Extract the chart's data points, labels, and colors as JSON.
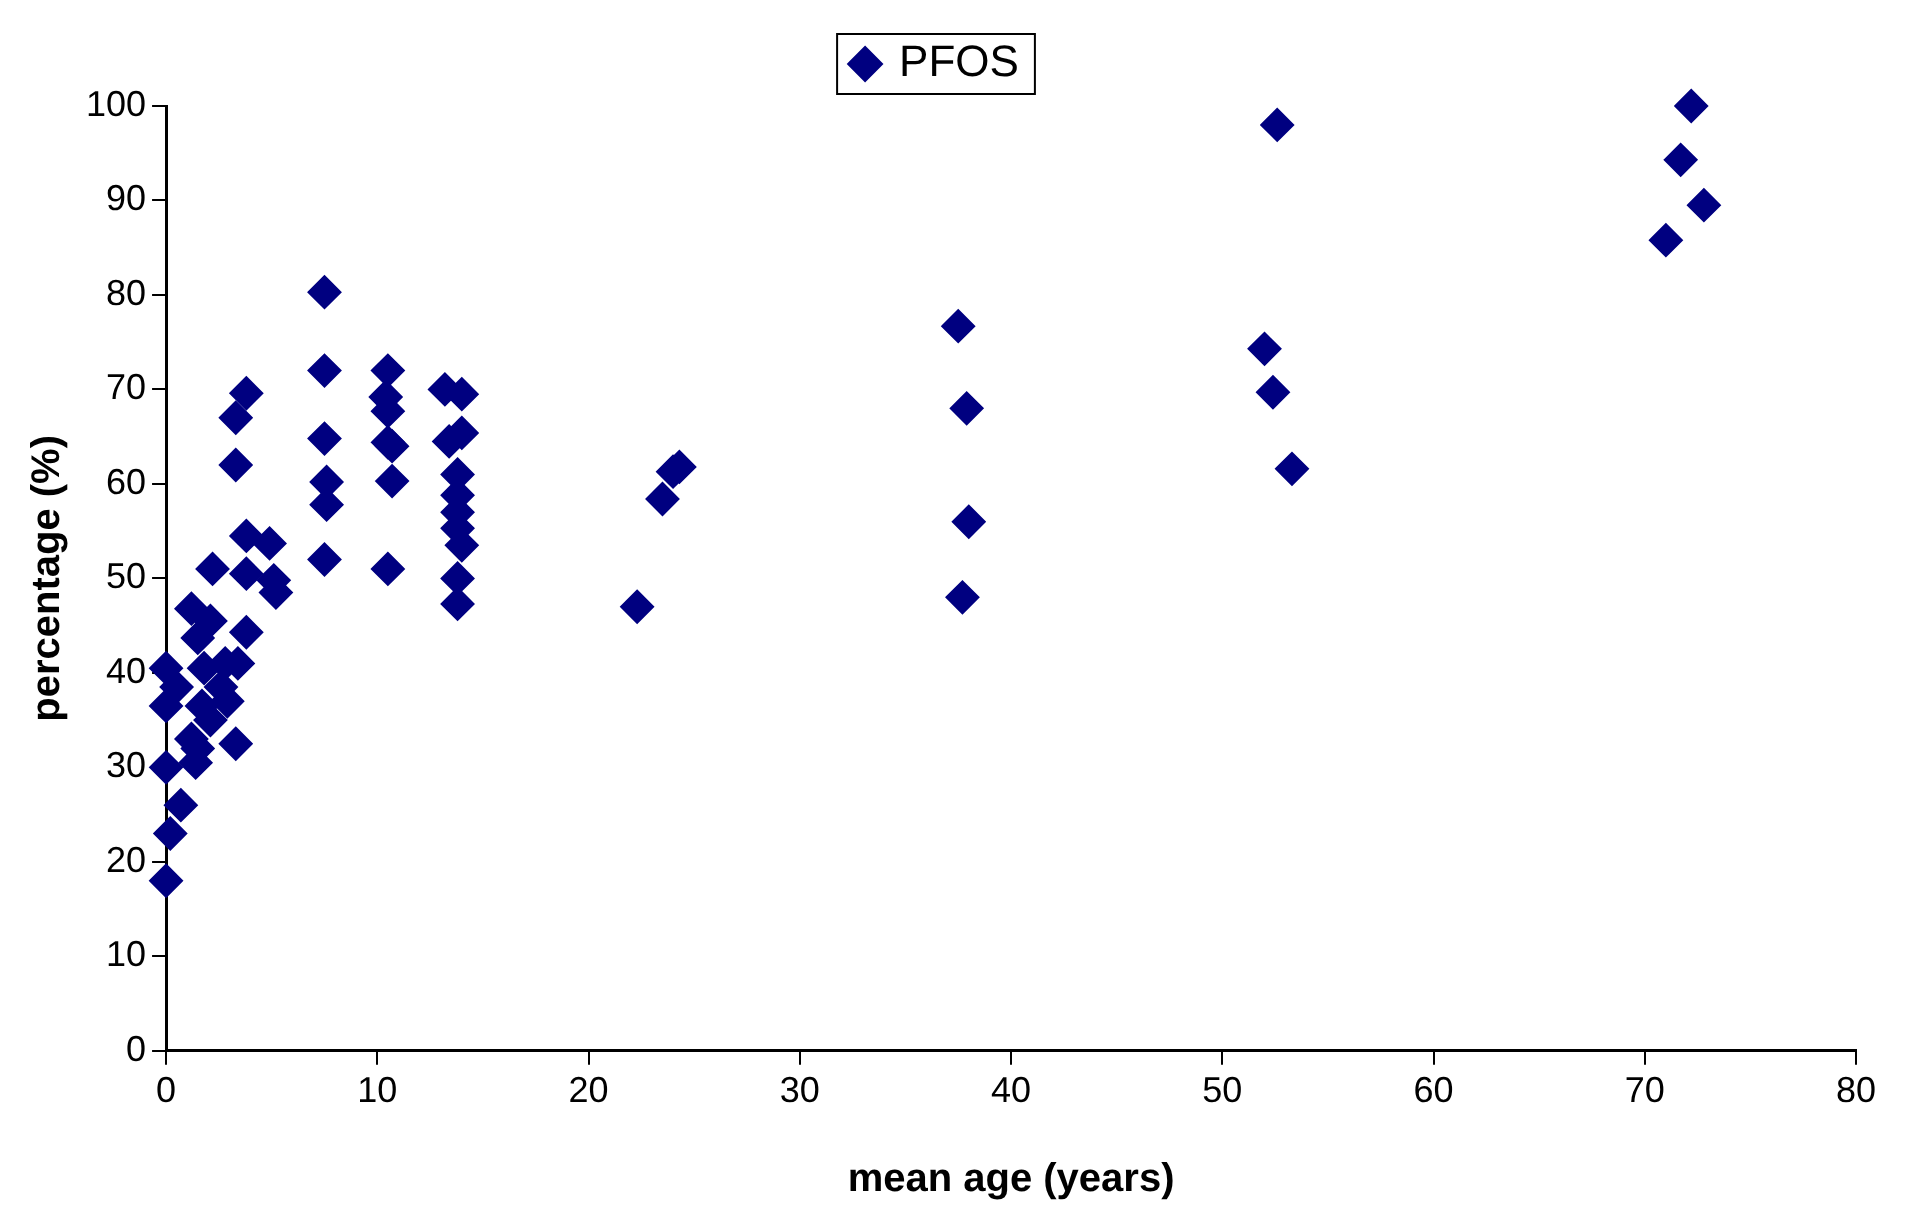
{
  "chart_data": {
    "type": "scatter",
    "xlabel": "mean age (years)",
    "ylabel": "percentage (%)",
    "series": [
      {
        "name": "PFOS",
        "color": "#000080",
        "x": [
          0,
          0.2,
          0.7,
          0,
          0,
          0,
          0.5,
          1.2,
          1.2,
          1.5,
          1.4,
          1.7,
          2.1,
          1.8,
          1.5,
          2.1,
          2.2,
          2.6,
          2.8,
          2.9,
          3.3,
          3.4,
          3.8,
          3.3,
          3.3,
          3.8,
          3.8,
          3.8,
          4.9,
          5.1,
          5.2,
          7.5,
          7.5,
          7.5,
          7.6,
          7.6,
          7.5,
          10.5,
          10.4,
          10.5,
          10.5,
          10.7,
          10.7,
          10.5,
          13.2,
          14,
          13.4,
          14,
          13.8,
          13.8,
          13.8,
          13.8,
          14,
          13.8,
          13.8,
          22.3,
          23.5,
          24,
          24.3,
          37.5,
          37.9,
          38,
          37.7,
          52,
          52.4,
          53.3,
          52.6,
          71,
          71.7,
          72.8,
          72.2
        ],
        "values": [
          18,
          23,
          26,
          30,
          36.5,
          40.5,
          38.5,
          46.8,
          33,
          32,
          30.5,
          36.5,
          35,
          40.5,
          43.7,
          45.5,
          51,
          38.5,
          41,
          37,
          32.5,
          41,
          44.3,
          62,
          67,
          69.6,
          54.5,
          50.5,
          53.7,
          49.8,
          48.5,
          80.3,
          72,
          64.8,
          60.2,
          57.8,
          52,
          72,
          69.2,
          67.7,
          64.4,
          64,
          60.3,
          51,
          70,
          69.5,
          64.5,
          65.4,
          61,
          58.8,
          57,
          55.3,
          53.5,
          50,
          47.3,
          47,
          58.4,
          61.3,
          61.8,
          76.7,
          68,
          56,
          48,
          74.3,
          69.7,
          61.6,
          98,
          85.8,
          94.3,
          89.5,
          100
        ]
      }
    ],
    "xlim": [
      0,
      80
    ],
    "xticks": [
      0,
      10,
      20,
      30,
      40,
      50,
      60,
      70,
      80
    ],
    "ylim": [
      0,
      100
    ],
    "yticks": [
      0,
      10,
      20,
      30,
      40,
      50,
      60,
      70,
      80,
      90,
      100
    ],
    "marker": "diamond",
    "legend": "top",
    "grid": false
  }
}
